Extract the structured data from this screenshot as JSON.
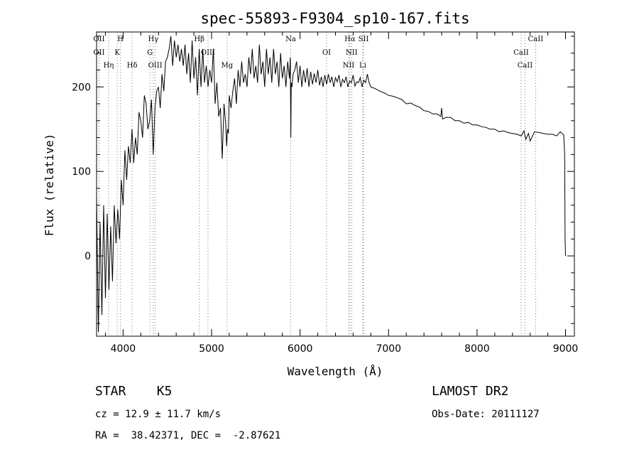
{
  "chart_data": {
    "type": "line",
    "title": "spec-55893-F9304_sp10-167.fits",
    "xlabel": "Wavelength (Å)",
    "ylabel": "Flux (relative)",
    "xlim": [
      3700,
      9100
    ],
    "ylim": [
      -95,
      265
    ],
    "xticks": [
      4000,
      5000,
      6000,
      7000,
      8000,
      9000
    ],
    "yticks": [
      0,
      100,
      200
    ],
    "grid": false,
    "series": [
      {
        "x": [
          3700,
          3720,
          3740,
          3760,
          3780,
          3800,
          3820,
          3840,
          3860,
          3880,
          3900,
          3920,
          3940,
          3960,
          3980,
          4000,
          4020,
          4040,
          4060,
          4080,
          4100,
          4120,
          4140,
          4160,
          4180,
          4200,
          4220,
          4240,
          4260,
          4280,
          4300,
          4320,
          4340,
          4360,
          4380,
          4400,
          4420,
          4440,
          4460,
          4480,
          4500,
          4520,
          4540,
          4560,
          4580,
          4600,
          4620,
          4640,
          4660,
          4680,
          4700,
          4720,
          4740,
          4760,
          4780,
          4800,
          4820,
          4840,
          4860,
          4880,
          4900,
          4920,
          4940,
          4960,
          4980,
          5000,
          5020,
          5040,
          5060,
          5080,
          5100,
          5120,
          5140,
          5160,
          5170,
          5180,
          5190,
          5200,
          5220,
          5240,
          5260,
          5280,
          5300,
          5320,
          5340,
          5360,
          5380,
          5400,
          5420,
          5440,
          5460,
          5480,
          5500,
          5520,
          5540,
          5560,
          5580,
          5600,
          5620,
          5640,
          5660,
          5680,
          5700,
          5720,
          5740,
          5760,
          5780,
          5800,
          5820,
          5840,
          5860,
          5880,
          5890,
          5895,
          5900,
          5910,
          5920,
          5940,
          5960,
          5980,
          6000,
          6020,
          6040,
          6060,
          6080,
          6100,
          6120,
          6140,
          6160,
          6180,
          6200,
          6220,
          6240,
          6260,
          6280,
          6300,
          6320,
          6340,
          6360,
          6380,
          6400,
          6420,
          6440,
          6460,
          6480,
          6500,
          6520,
          6540,
          6560,
          6580,
          6600,
          6620,
          6640,
          6660,
          6680,
          6700,
          6720,
          6740,
          6760,
          6780,
          6800,
          6850,
          6900,
          6950,
          7000,
          7050,
          7100,
          7150,
          7200,
          7250,
          7300,
          7350,
          7400,
          7450,
          7500,
          7550,
          7590,
          7600,
          7610,
          7650,
          7700,
          7750,
          7800,
          7850,
          7900,
          7950,
          8000,
          8050,
          8100,
          8150,
          8200,
          8250,
          8300,
          8350,
          8400,
          8450,
          8500,
          8530,
          8550,
          8580,
          8600,
          8650,
          8700,
          8750,
          8800,
          8850,
          8900,
          8940,
          8960,
          8980,
          8990,
          8995,
          9000
        ],
        "y": [
          70,
          -90,
          40,
          -70,
          60,
          -50,
          50,
          -40,
          35,
          -30,
          60,
          15,
          55,
          20,
          90,
          60,
          125,
          90,
          130,
          110,
          150,
          110,
          140,
          120,
          170,
          160,
          140,
          190,
          180,
          150,
          160,
          185,
          120,
          175,
          195,
          200,
          175,
          215,
          195,
          230,
          235,
          245,
          260,
          225,
          255,
          235,
          250,
          230,
          245,
          225,
          250,
          215,
          240,
          205,
          255,
          210,
          235,
          190,
          245,
          200,
          245,
          205,
          225,
          200,
          220,
          205,
          245,
          180,
          205,
          165,
          175,
          115,
          180,
          155,
          130,
          150,
          145,
          190,
          175,
          195,
          210,
          180,
          220,
          200,
          230,
          205,
          215,
          200,
          235,
          215,
          245,
          210,
          225,
          205,
          250,
          215,
          230,
          200,
          245,
          215,
          235,
          205,
          245,
          215,
          230,
          200,
          240,
          210,
          225,
          200,
          230,
          210,
          235,
          140,
          205,
          200,
          215,
          220,
          230,
          205,
          225,
          200,
          220,
          205,
          222,
          200,
          218,
          203,
          216,
          205,
          220,
          202,
          212,
          200,
          214,
          203,
          215,
          205,
          212,
          200,
          211,
          206,
          214,
          200,
          209,
          205,
          212,
          200,
          207,
          205,
          214,
          201,
          206,
          205,
          211,
          200,
          208,
          205,
          215,
          205,
          200,
          198,
          195,
          193,
          190,
          189,
          187,
          185,
          180,
          181,
          178,
          176,
          172,
          171,
          168,
          168,
          165,
          175,
          162,
          164,
          164,
          160,
          160,
          157,
          158,
          155,
          155,
          153,
          152,
          150,
          150,
          147,
          148,
          146,
          145,
          144,
          142,
          148,
          138,
          145,
          136,
          147,
          146,
          145,
          144,
          144,
          142,
          147,
          145,
          143,
          120,
          20,
          0
        ]
      }
    ],
    "spectral_lines": [
      {
        "label": "OII",
        "x": 3728
      },
      {
        "label": "OII",
        "x": 3728
      },
      {
        "label": "Hη",
        "x": 3836
      },
      {
        "label": "H",
        "x": 3970
      },
      {
        "label": "K",
        "x": 3934
      },
      {
        "label": "Hδ",
        "x": 4102
      },
      {
        "label": "Hγ",
        "x": 4341
      },
      {
        "label": "G",
        "x": 4304
      },
      {
        "label": "OIII",
        "x": 4363
      },
      {
        "label": "Hβ",
        "x": 4861
      },
      {
        "label": "OIII",
        "x": 4959
      },
      {
        "label": "Mg",
        "x": 5175
      },
      {
        "label": "Na",
        "x": 5894
      },
      {
        "label": "OI",
        "x": 6300
      },
      {
        "label": "NII",
        "x": 6548
      },
      {
        "label": "Hα",
        "x": 6563
      },
      {
        "label": "NII",
        "x": 6583
      },
      {
        "label": "Li",
        "x": 6708
      },
      {
        "label": "SII",
        "x": 6717
      },
      {
        "label": "CaII",
        "x": 8498
      },
      {
        "label": "CaII",
        "x": 8542
      },
      {
        "label": "CaII",
        "x": 8662
      }
    ]
  },
  "info": {
    "class_label": "STAR    K5",
    "survey": "LAMOST DR2",
    "cz": "cz = 12.9 ± 11.7 km/s",
    "obs_date": "Obs-Date: 20111127",
    "coords": "RA =  38.42371, DEC =  -2.87621"
  }
}
